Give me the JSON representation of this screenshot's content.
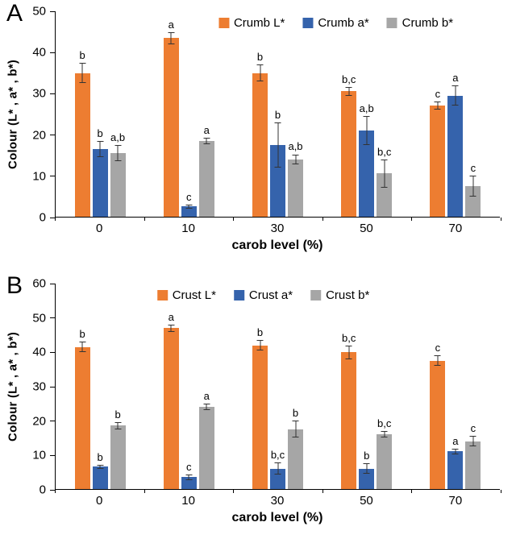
{
  "figure": {
    "background": "#ffffff"
  },
  "colors": {
    "orange": "#ED7D31",
    "blue": "#3563AC",
    "gray": "#A6A6A6",
    "error_bar": "#333333"
  },
  "chart_data": [
    {
      "panel_label": "A",
      "type": "bar",
      "ylabel": "Colour (L* , a* , b*)",
      "xlabel": "carob level (%)",
      "ymin": 0,
      "ymax": 50,
      "ystep": 10,
      "grid": false,
      "legend_position": "top",
      "categories": [
        "0",
        "10",
        "30",
        "50",
        "70"
      ],
      "series": [
        {
          "name": "Crumb L*",
          "color": "#ED7D31",
          "values": [
            35,
            43.5,
            35,
            30.5,
            27
          ],
          "errors": [
            2.5,
            1.5,
            2,
            1,
            1
          ],
          "sig_labels": [
            "b",
            "a",
            "b",
            "b,c",
            "c"
          ]
        },
        {
          "name": "Crumb a*",
          "color": "#3563AC",
          "values": [
            16.5,
            2.5,
            17.5,
            21,
            29.5
          ],
          "errors": [
            2,
            0.5,
            5.5,
            3.5,
            2.5
          ],
          "sig_labels": [
            "b",
            "c",
            "b",
            "a,b",
            "a"
          ]
        },
        {
          "name": "Crumb b*",
          "color": "#A6A6A6",
          "values": [
            15.5,
            18.5,
            14,
            10.5,
            7.5
          ],
          "errors": [
            2,
            0.8,
            1.2,
            3.5,
            2.5
          ],
          "sig_labels": [
            "a,b",
            "a",
            "a,b",
            "b,c",
            "c"
          ]
        }
      ]
    },
    {
      "panel_label": "B",
      "type": "bar",
      "ylabel": "Colour (L* , a* , b*)",
      "xlabel": "carob level (%)",
      "ymin": 0,
      "ymax": 60,
      "ystep": 10,
      "grid": false,
      "legend_position": "top",
      "categories": [
        "0",
        "10",
        "30",
        "50",
        "70"
      ],
      "series": [
        {
          "name": "Crust L*",
          "color": "#ED7D31",
          "values": [
            41.5,
            47,
            42,
            40,
            37.5
          ],
          "errors": [
            1.5,
            1,
            1.5,
            2,
            1.5
          ],
          "sig_labels": [
            "b",
            "a",
            "b",
            "b,c",
            "c"
          ]
        },
        {
          "name": "Crust a*",
          "color": "#3563AC",
          "values": [
            6.5,
            3.5,
            6,
            6,
            11
          ],
          "errors": [
            0.5,
            0.8,
            1.8,
            1.5,
            0.8
          ],
          "sig_labels": [
            "b",
            "c",
            "b,c",
            "b",
            "a"
          ]
        },
        {
          "name": "Crust b*",
          "color": "#A6A6A6",
          "values": [
            18.5,
            24,
            17.5,
            16,
            14
          ],
          "errors": [
            1,
            1,
            2.5,
            1,
            1.5
          ],
          "sig_labels": [
            "b",
            "a",
            "b",
            "b,c",
            "c"
          ]
        }
      ]
    }
  ]
}
